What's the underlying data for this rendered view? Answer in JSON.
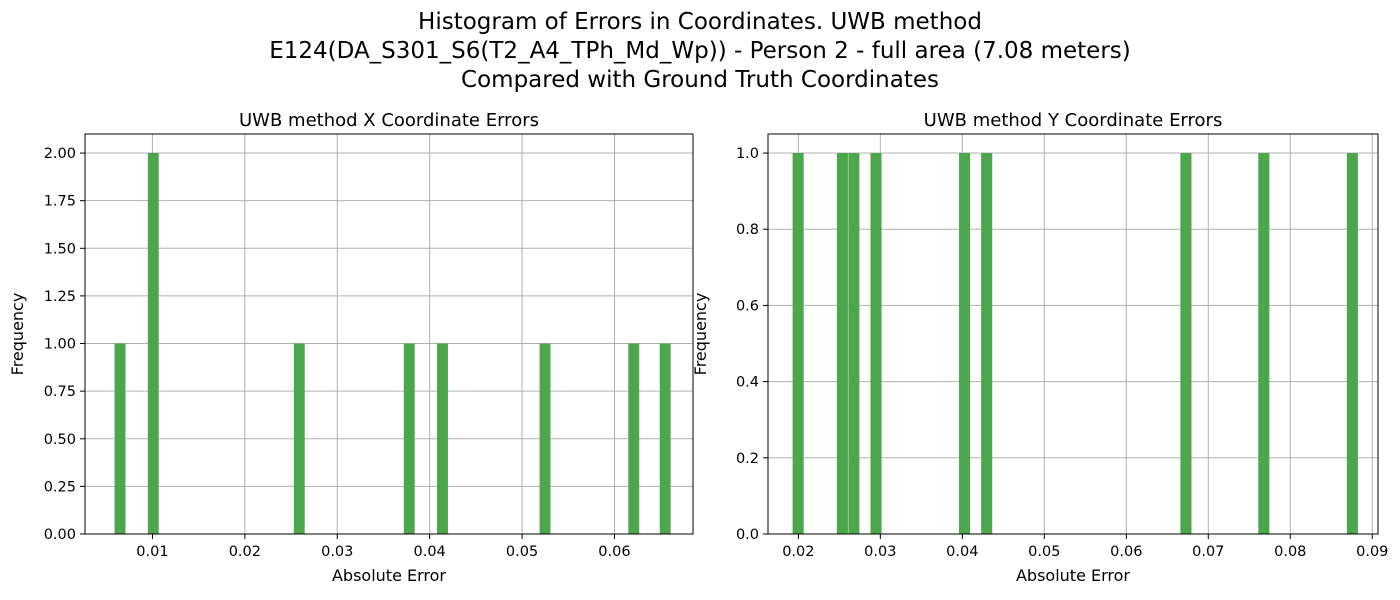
{
  "suptitle": {
    "line1": "Histogram of Errors in Coordinates. UWB method",
    "line2": "E124(DA_S301_S6(T2_A4_TPh_Md_Wp)) - Person 2 - full area (7.08 meters)",
    "line3": "Compared with Ground Truth Coordinates"
  },
  "chart_data": [
    {
      "type": "bar",
      "title": "UWB method X Coordinate Errors",
      "xlabel": "Absolute Error",
      "ylabel": "Frequency",
      "xlim": [
        0.0027,
        0.0685
      ],
      "ylim": [
        0,
        2.1
      ],
      "grid": true,
      "color": "#4ca64c",
      "bin_width": 0.00118,
      "x_ticks": [
        "0.01",
        "0.02",
        "0.03",
        "0.04",
        "0.05",
        "0.06"
      ],
      "x_tick_values": [
        0.01,
        0.02,
        0.03,
        0.04,
        0.05,
        0.06
      ],
      "y_ticks": [
        "0.00",
        "0.25",
        "0.50",
        "0.75",
        "1.00",
        "1.25",
        "1.50",
        "1.75",
        "2.00"
      ],
      "y_tick_values": [
        0,
        0.25,
        0.5,
        0.75,
        1.0,
        1.25,
        1.5,
        1.75,
        2.0
      ],
      "bins": [
        {
          "x": 0.0059,
          "count": 1
        },
        {
          "x": 0.0095,
          "count": 2
        },
        {
          "x": 0.0253,
          "count": 1
        },
        {
          "x": 0.0372,
          "count": 1
        },
        {
          "x": 0.0408,
          "count": 1
        },
        {
          "x": 0.0519,
          "count": 1
        },
        {
          "x": 0.0615,
          "count": 1
        },
        {
          "x": 0.0649,
          "count": 1
        }
      ]
    },
    {
      "type": "bar",
      "title": "UWB method Y Coordinate Errors",
      "xlabel": "Absolute Error",
      "ylabel": "Frequency",
      "xlim": [
        0.0163,
        0.0907
      ],
      "ylim": [
        0,
        1.05
      ],
      "grid": true,
      "color": "#4ca64c",
      "bin_width": 0.00135,
      "x_ticks": [
        "0.02",
        "0.03",
        "0.04",
        "0.05",
        "0.06",
        "0.07",
        "0.08",
        "0.09"
      ],
      "x_tick_values": [
        0.02,
        0.03,
        0.04,
        0.05,
        0.06,
        0.07,
        0.08,
        0.09
      ],
      "y_ticks": [
        "0.0",
        "0.2",
        "0.4",
        "0.6",
        "0.8",
        "1.0"
      ],
      "y_tick_values": [
        0,
        0.2,
        0.4,
        0.6,
        0.8,
        1.0
      ],
      "bins": [
        {
          "x": 0.0193,
          "count": 1
        },
        {
          "x": 0.0247,
          "count": 1
        },
        {
          "x": 0.0261,
          "count": 1
        },
        {
          "x": 0.0288,
          "count": 1
        },
        {
          "x": 0.0396,
          "count": 1
        },
        {
          "x": 0.0423,
          "count": 1
        },
        {
          "x": 0.0666,
          "count": 1
        },
        {
          "x": 0.0761,
          "count": 1
        },
        {
          "x": 0.0869,
          "count": 1
        }
      ]
    }
  ]
}
